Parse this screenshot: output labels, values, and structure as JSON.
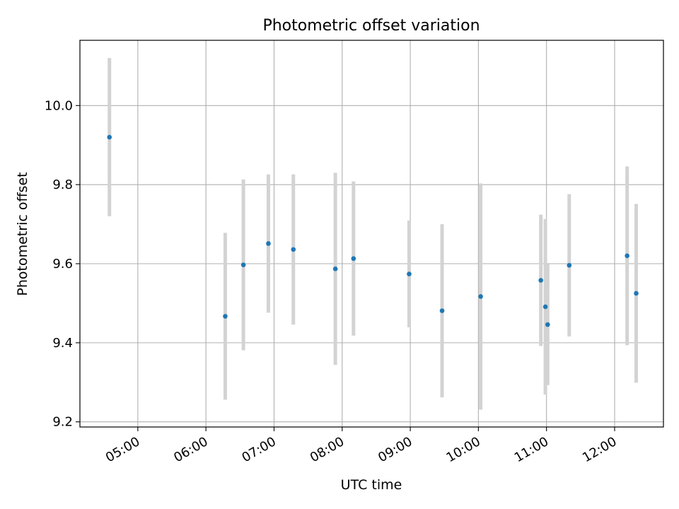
{
  "chart_data": {
    "type": "scatter",
    "title": "Photometric offset variation",
    "xlabel": "UTC time",
    "ylabel": "Photometric offset",
    "xlim": [
      "04:09",
      "12:43"
    ],
    "ylim": [
      9.187,
      10.165
    ],
    "x_ticks": [
      "05:00",
      "06:00",
      "07:00",
      "08:00",
      "09:00",
      "10:00",
      "11:00",
      "12:00"
    ],
    "y_ticks": [
      "9.2",
      "9.4",
      "9.6",
      "9.8",
      "10.0"
    ],
    "grid": true,
    "point_color": "#1f77b4",
    "errorbar_color": "#d3d3d3",
    "points": [
      {
        "time": "04:35",
        "y": 9.92,
        "err": 0.2
      },
      {
        "time": "06:17",
        "y": 9.467,
        "err": 0.211
      },
      {
        "time": "06:33",
        "y": 9.597,
        "err": 0.216
      },
      {
        "time": "06:55",
        "y": 9.651,
        "err": 0.175
      },
      {
        "time": "07:17",
        "y": 9.636,
        "err": 0.19
      },
      {
        "time": "07:54",
        "y": 9.587,
        "err": 0.243
      },
      {
        "time": "08:10",
        "y": 9.613,
        "err": 0.195
      },
      {
        "time": "08:59",
        "y": 9.574,
        "err": 0.135
      },
      {
        "time": "09:28",
        "y": 9.481,
        "err": 0.219
      },
      {
        "time": "10:02",
        "y": 9.517,
        "err": 0.286
      },
      {
        "time": "10:55",
        "y": 9.558,
        "err": 0.166
      },
      {
        "time": "10:59",
        "y": 9.491,
        "err": 0.222
      },
      {
        "time": "11:01",
        "y": 9.446,
        "err": 0.153
      },
      {
        "time": "11:20",
        "y": 9.596,
        "err": 0.18
      },
      {
        "time": "12:11",
        "y": 9.62,
        "err": 0.226
      },
      {
        "time": "12:19",
        "y": 9.525,
        "err": 0.226
      }
    ]
  }
}
